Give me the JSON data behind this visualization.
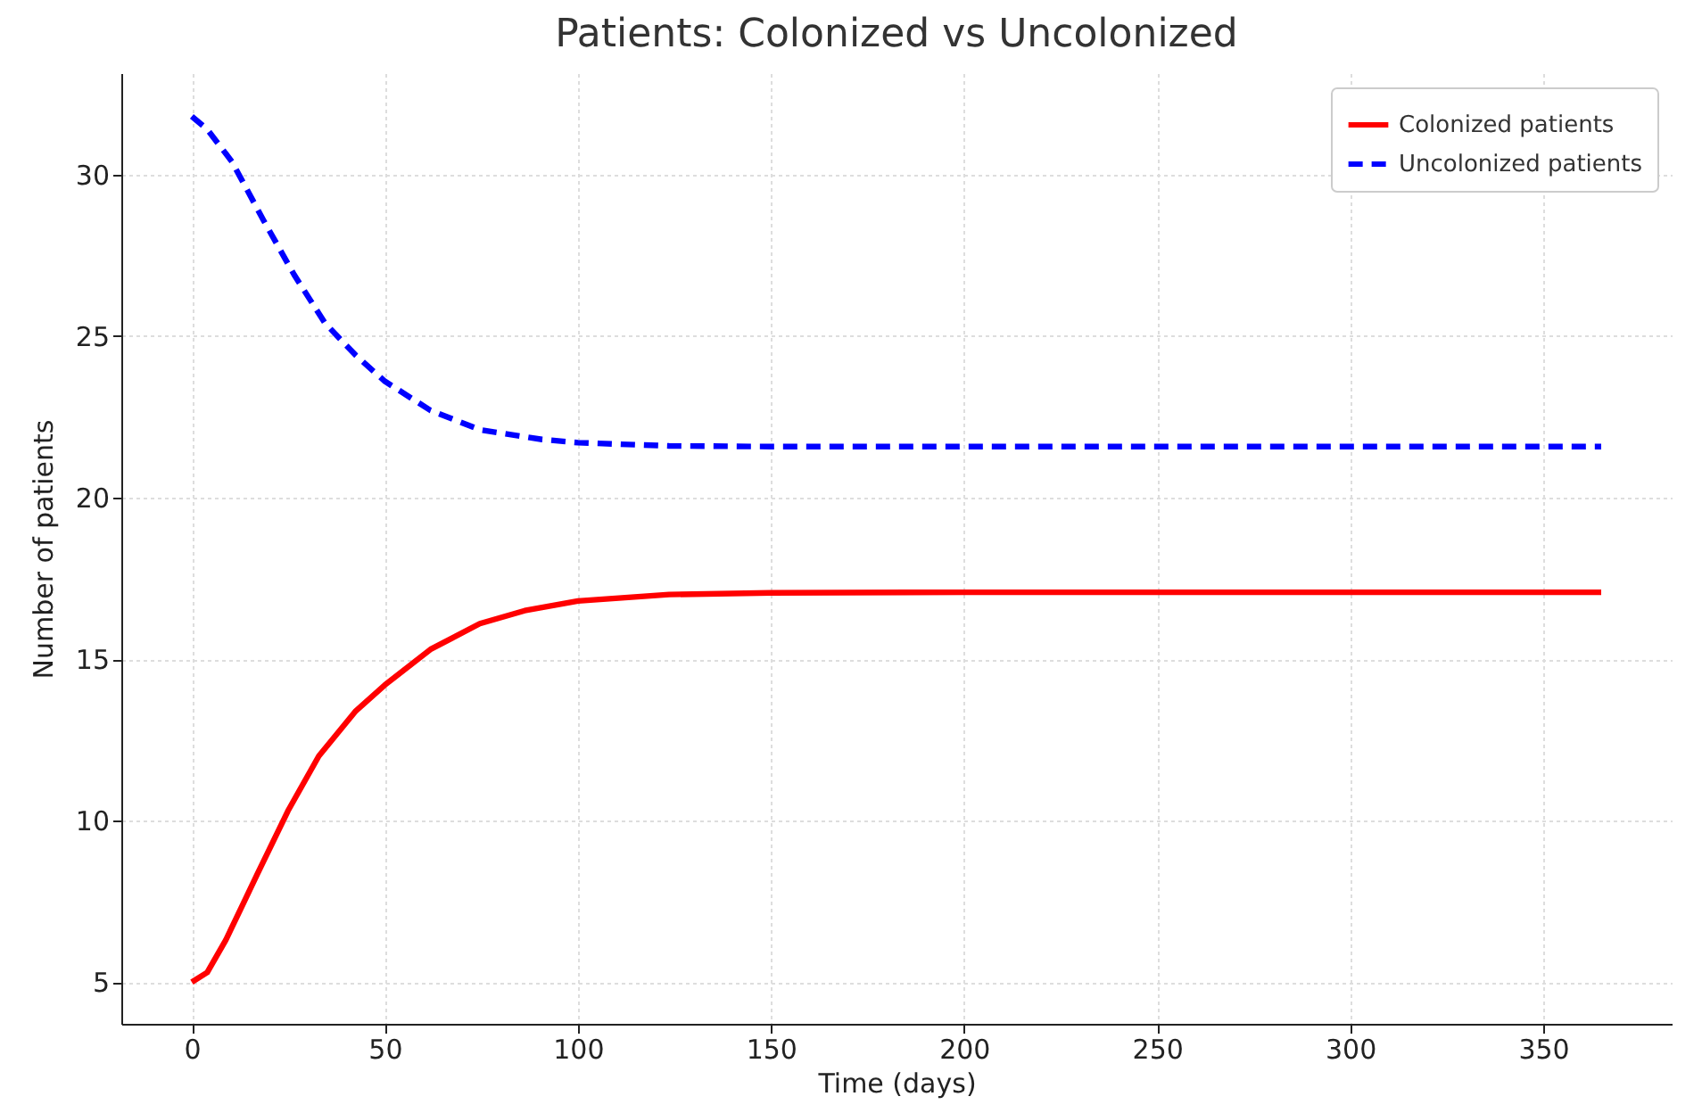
{
  "chart_data": {
    "type": "line",
    "title": "Patients: Colonized vs Uncolonized",
    "xlabel": "Time (days)",
    "ylabel": "Number of patients",
    "xlim": [
      -18.25,
      383.25
    ],
    "xticks": [
      0,
      50,
      100,
      150,
      200,
      250,
      300,
      350
    ],
    "ylim": [
      3.71,
      33.14
    ],
    "yticks": [
      5,
      10,
      15,
      20,
      25,
      30
    ],
    "grid": true,
    "legend": "top right",
    "marker": "none",
    "series": [
      {
        "name": "Colonized patients",
        "color": "#ff0000",
        "line_style": "solid",
        "x": [
          0,
          4,
          8.8,
          16.8,
          24.9,
          32.9,
          42.5,
          50,
          61.8,
          74.6,
          86.2,
          100,
          123.6,
          150,
          200,
          250,
          300,
          365
        ],
        "values": [
          5.0,
          5.3,
          6.3,
          8.3,
          10.3,
          12.0,
          13.4,
          14.2,
          15.3,
          16.1,
          16.5,
          16.8,
          17.0,
          17.05,
          17.07,
          17.07,
          17.07,
          17.07
        ]
      },
      {
        "name": "Uncolonized patients",
        "color": "#0000ff",
        "line_style": "dashed",
        "x": [
          0,
          4,
          10.4,
          18.5,
          26.5,
          34.5,
          42.5,
          50,
          61.8,
          74.6,
          90.7,
          100,
          123.6,
          150,
          200,
          250,
          300,
          365
        ],
        "values": [
          31.8,
          31.4,
          30.4,
          28.6,
          26.9,
          25.4,
          24.4,
          23.6,
          22.7,
          22.1,
          21.8,
          21.7,
          21.6,
          21.58,
          21.58,
          21.58,
          21.58,
          21.58
        ]
      }
    ]
  }
}
